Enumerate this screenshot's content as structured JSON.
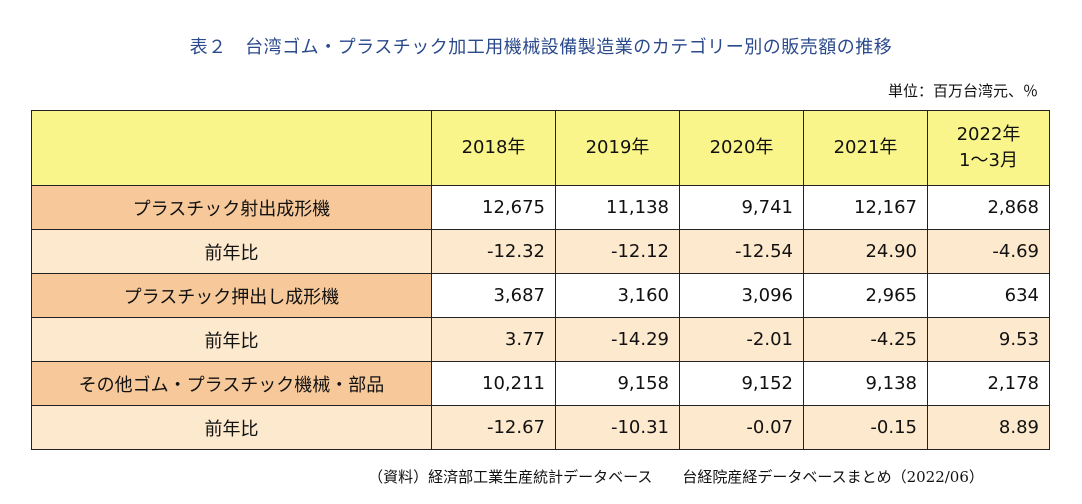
{
  "title": "表２　台湾ゴム・プラスチック加工用機械設備製造業のカテゴリー別の販売額の推移",
  "unit": "単位：百万台湾元、％",
  "columns": [
    "2018年",
    "2019年",
    "2020年",
    "2021年",
    "2022年\n1〜3月"
  ],
  "rows": [
    {
      "label": "プラスチック射出成形機",
      "type": "main",
      "values": [
        "12,675",
        "11,138",
        "9,741",
        "12,167",
        "2,868"
      ]
    },
    {
      "label": "前年比",
      "type": "ratio",
      "values": [
        "-12.32",
        "-12.12",
        "-12.54",
        "24.90",
        "-4.69"
      ]
    },
    {
      "label": "プラスチック押出し成形機",
      "type": "main",
      "values": [
        "3,687",
        "3,160",
        "3,096",
        "2,965",
        "634"
      ]
    },
    {
      "label": "前年比",
      "type": "ratio",
      "values": [
        "3.77",
        "-14.29",
        "-2.01",
        "-4.25",
        "9.53"
      ]
    },
    {
      "label": "その他ゴム・プラスチック機械・部品",
      "type": "main",
      "values": [
        "10,211",
        "9,158",
        "9,152",
        "9,138",
        "2,178"
      ]
    },
    {
      "label": "前年比",
      "type": "ratio",
      "values": [
        "-12.67",
        "-10.31",
        "-0.07",
        "-0.15",
        "8.89"
      ]
    }
  ],
  "source": "（資料）経済部工業生産統計データベース　　台経院産経データベースまとめ（2022/06）"
}
